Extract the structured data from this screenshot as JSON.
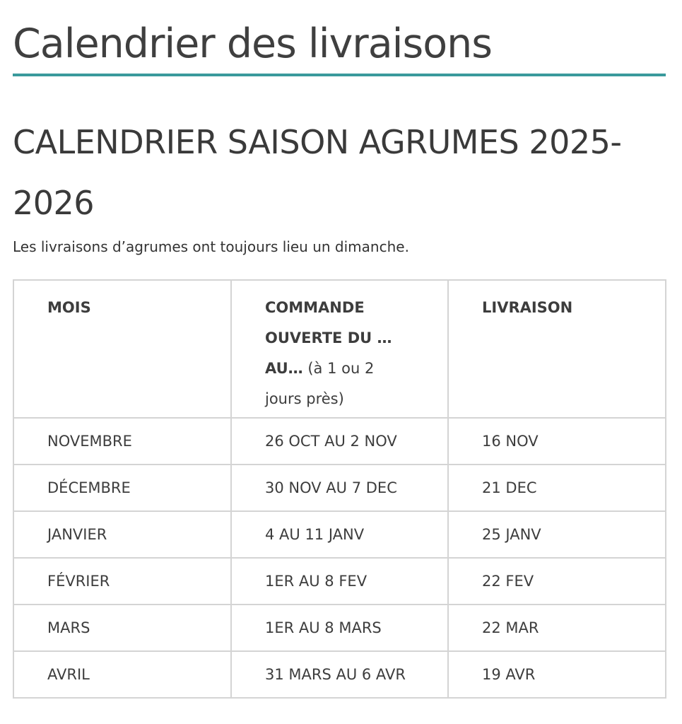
{
  "page_title": "Calendrier des livraisons",
  "accent_color": "#3a9a9c",
  "section_title": "CALENDRIER SAISON AGRUMES 2025-2026",
  "intro": "Les livraisons d’agrumes ont toujours lieu un dimanche.",
  "table": {
    "headers": {
      "mois": "MOIS",
      "commande_bold": "COMMANDE OUVERTE DU … AU…",
      "commande_note": " (à 1 ou 2 jours près)",
      "livraison": "LIVRAISON"
    },
    "rows": [
      {
        "mois": "NOVEMBRE",
        "commande": "26 OCT AU 2 NOV",
        "livraison": "16 NOV"
      },
      {
        "mois": "DÉCEMBRE",
        "commande": "30 NOV AU 7 DEC",
        "livraison": "21 DEC"
      },
      {
        "mois": "JANVIER",
        "commande": "4 AU 11 JANV",
        "livraison": "25 JANV"
      },
      {
        "mois": "FÉVRIER",
        "commande": "1ER AU 8 FEV",
        "livraison": "22 FEV"
      },
      {
        "mois": "MARS",
        "commande": "1ER AU 8 MARS",
        "livraison": "22 MAR"
      },
      {
        "mois": "AVRIL",
        "commande": "31 MARS AU 6 AVR",
        "livraison": "19 AVR"
      }
    ]
  }
}
